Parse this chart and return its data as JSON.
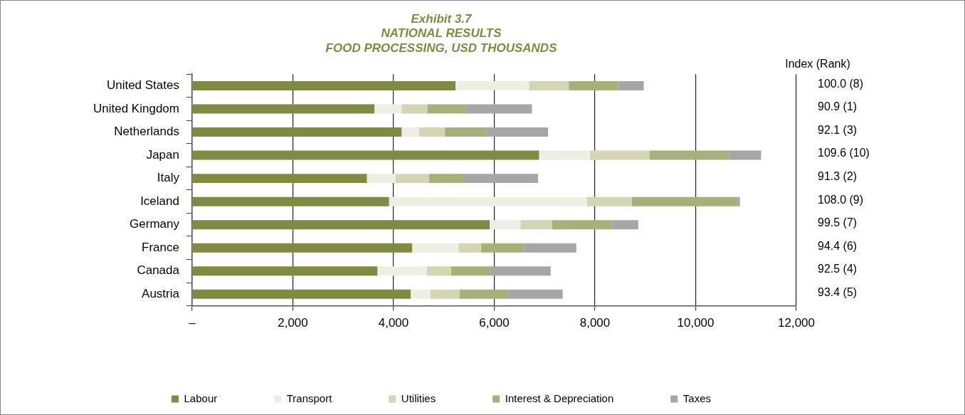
{
  "chart_data": {
    "type": "bar",
    "orientation": "horizontal",
    "stacked": true,
    "title": "Exhibit 3.7",
    "subtitle": "NATIONAL RESULTS\nFOOD PROCESSING, USD THOUSANDS",
    "categories": [
      "United States",
      "United Kingdom",
      "Netherlands",
      "Japan",
      "Italy",
      "Iceland",
      "Germany",
      "France",
      "Canada",
      "Austria"
    ],
    "series": [
      {
        "name": "Labour",
        "color": "#808a40",
        "values": [
          5230,
          3620,
          4160,
          6890,
          3470,
          3910,
          5910,
          4370,
          3680,
          4340
        ]
      },
      {
        "name": "Transport",
        "color": "#eeeee2",
        "values": [
          1460,
          540,
          350,
          1010,
          570,
          3930,
          610,
          920,
          980,
          390
        ]
      },
      {
        "name": "Utilities",
        "color": "#d4d5b2",
        "values": [
          790,
          510,
          510,
          1180,
          660,
          890,
          630,
          450,
          480,
          580
        ]
      },
      {
        "name": "Interest & Depreciation",
        "color": "#a8b07a",
        "values": [
          980,
          770,
          820,
          1580,
          700,
          2100,
          1180,
          850,
          770,
          950
        ]
      },
      {
        "name": "Taxes",
        "color": "#a6a6a6",
        "values": [
          510,
          1310,
          1230,
          640,
          1470,
          50,
          530,
          1040,
          1210,
          1100
        ]
      }
    ],
    "xlim": [
      0,
      12000
    ],
    "xticks": [
      {
        "value": 0,
        "label": "–"
      },
      {
        "value": 2000,
        "label": "2,000"
      },
      {
        "value": 4000,
        "label": "4,000"
      },
      {
        "value": 6000,
        "label": "6,000"
      },
      {
        "value": 8000,
        "label": "8,000"
      },
      {
        "value": 10000,
        "label": "10,000"
      },
      {
        "value": 12000,
        "label": "12,000"
      }
    ],
    "grid": "x",
    "legend": "bottom",
    "annotations": [
      "Index (Rank)",
      "100.0 (8)",
      "90.9 (1)",
      "92.1 (3)",
      "109.6 (10)",
      "91.3 (2)",
      "108.0 (9)",
      "99.5 (7)",
      "94.4 (6)",
      "92.5 (4)",
      "93.4 (5)"
    ]
  }
}
